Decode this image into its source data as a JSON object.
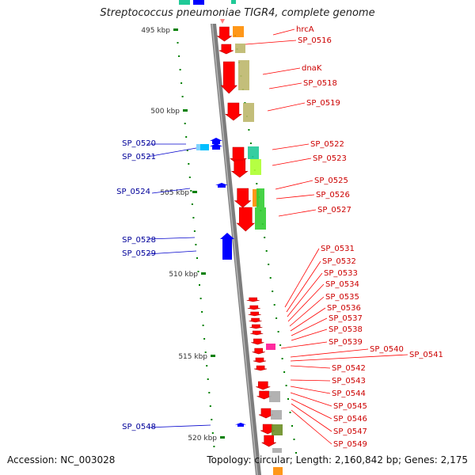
{
  "title": "Streptococcus pneumoniae TIGR4, complete genome",
  "accession": "Accession: NC_003028",
  "topology": "Topology: circular; Length: 2,160,842 bp; Genes: 2,175",
  "scale_labels": [
    "495 kbp",
    "500 kbp",
    "505 kbp",
    "510 kbp",
    "515 kbp",
    "520 kbp"
  ],
  "colors": {
    "forward_gene": "#ff0000",
    "reverse_gene": "#0000ff",
    "backbone": "#808080",
    "ticks": "#008000",
    "label_forward": "#cc0000",
    "label_reverse": "#000099"
  },
  "forward_labels": [
    "hrcA",
    "SP_0516",
    "dnaK",
    "SP_0518",
    "SP_0519",
    "SP_0522",
    "SP_0523",
    "SP_0525",
    "SP_0526",
    "SP_0527",
    "SP_0531",
    "SP_0532",
    "SP_0533",
    "SP_0534",
    "SP_0535",
    "SP_0536",
    "SP_0537",
    "SP_0538",
    "SP_0539",
    "SP_0540",
    "SP_0541",
    "SP_0542",
    "SP_0543",
    "SP_0544",
    "SP_0545",
    "SP_0546",
    "SP_0547",
    "SP_0549"
  ],
  "reverse_labels": [
    "SP_0520",
    "SP_0521",
    "SP_0524",
    "SP_0528",
    "SP_0529",
    "SP_0548"
  ]
}
